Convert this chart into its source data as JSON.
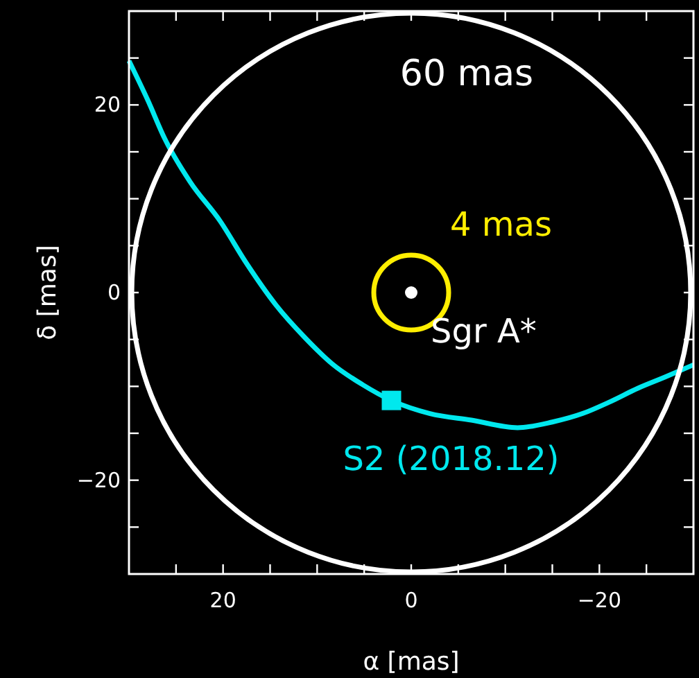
{
  "chart_data": {
    "type": "line",
    "xlabel": "α [mas]",
    "ylabel": "δ [mas]",
    "xlim": [
      30,
      -30
    ],
    "ylim": [
      -30,
      30
    ],
    "xticks": [
      {
        "value": 25,
        "label": null
      },
      20,
      {
        "value": 15,
        "label": null
      },
      {
        "value": 10,
        "label": null
      },
      {
        "value": 5,
        "label": null
      },
      0,
      {
        "value": -5,
        "label": null
      },
      {
        "value": -10,
        "label": null
      },
      {
        "value": -15,
        "label": null
      },
      {
        "value": -20,
        "label": "−20"
      },
      {
        "value": -25,
        "label": null
      }
    ],
    "yticks": [
      {
        "value": -25,
        "label": null
      },
      {
        "value": -20,
        "label": "−20"
      },
      {
        "value": -15,
        "label": null
      },
      {
        "value": -10,
        "label": null
      },
      {
        "value": -5,
        "label": null
      },
      0,
      {
        "value": 5,
        "label": null
      },
      {
        "value": 10,
        "label": null
      },
      {
        "value": 15,
        "label": null
      },
      20,
      {
        "value": 25,
        "label": null
      }
    ],
    "grid": false,
    "legend": false,
    "annotations": [
      "60 mas",
      "4 mas"
    ],
    "series": [
      {
        "color": "#00e8ee",
        "marker": "none",
        "x": [
          30,
          28,
          26.2,
          23.5,
          20.3,
          17.5,
          14.4,
          11.3,
          8.4,
          5.2,
          2.1,
          -2,
          -6.4,
          -11.3,
          -15,
          -18.2,
          -21,
          -24.1,
          -27,
          -30
        ],
        "values": [
          24.7,
          20.5,
          16.4,
          11.8,
          7.6,
          3.1,
          -1.3,
          -4.8,
          -7.6,
          -9.8,
          -11.5,
          -12.9,
          -13.6,
          -14.4,
          -13.8,
          -12.9,
          -11.7,
          -10.2,
          -9,
          -7.7
        ]
      },
      {
        "type": "scatter",
        "name": "Sgr A*",
        "color": "#ffffff",
        "marker": "circle",
        "x": [
          0
        ],
        "values": [
          0
        ]
      },
      {
        "type": "scatter",
        "name": "S2 (2018.12)",
        "color": "#00e8ee",
        "marker": "square",
        "x": [
          2.1
        ],
        "values": [
          -11.5
        ]
      }
    ]
  }
}
